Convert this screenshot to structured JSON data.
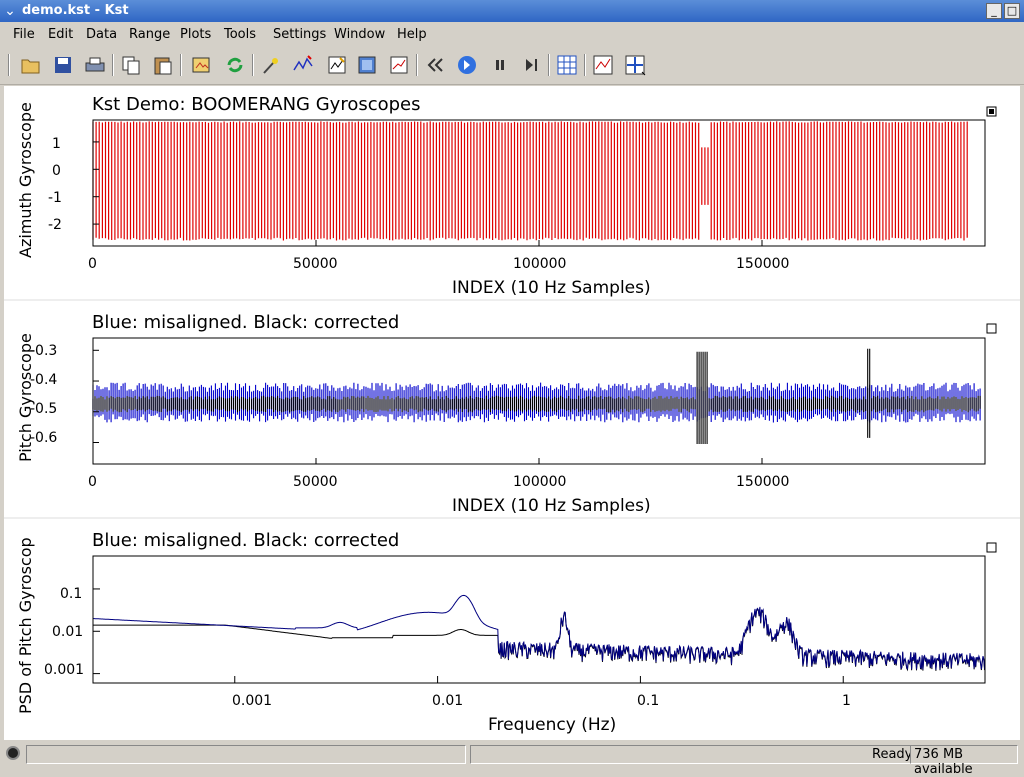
{
  "window": {
    "title": "demo.kst - Kst"
  },
  "menu": [
    "File",
    "Edit",
    "Data",
    "Range",
    "Plots",
    "Tools",
    "Settings",
    "Window",
    "Help"
  ],
  "toolbar_icons": [
    "open-icon",
    "save-icon",
    "print-icon",
    "copy-icon",
    "paste-icon",
    "export-icon",
    "reload-icon",
    "magic-wand-icon",
    "data-wizard-icon",
    "edit-curve-icon",
    "edit-image-icon",
    "edit-plot-icon",
    "back-icon",
    "play-icon",
    "pause-icon",
    "forward-icon",
    "layout-mode-icon",
    "zoom-xy-icon",
    "zoom-menu-icon"
  ],
  "plots": {
    "p1": {
      "title": "Kst Demo: BOOMERANG Gyroscopes",
      "ylabel": "Azimuth Gyroscope",
      "xlabel": "INDEX (10 Hz Samples)",
      "yticks": [
        "1",
        "0",
        "-1",
        "-2"
      ],
      "xticks": [
        "0",
        "50000",
        "100000",
        "150000"
      ]
    },
    "p2": {
      "title": "Blue: misaligned. Black: corrected",
      "ylabel": "Pitch Gyroscope",
      "xlabel": "INDEX (10 Hz Samples)",
      "yticks": [
        "-0.3",
        "-0.4",
        "-0.5",
        "-0.6"
      ],
      "xticks": [
        "0",
        "50000",
        "100000",
        "150000"
      ]
    },
    "p3": {
      "title": "Blue: misaligned.  Black: corrected",
      "ylabel": "PSD of Pitch Gyroscop",
      "xlabel": "Frequency (Hz)",
      "yticks": [
        "0.1",
        "0.01",
        "0.001"
      ],
      "xticks": [
        "0.001",
        "0.01",
        "0.1",
        "1"
      ]
    }
  },
  "chart_data": [
    {
      "type": "line",
      "title": "Kst Demo: BOOMERANG Gyroscopes",
      "xlabel": "INDEX (10 Hz Samples)",
      "ylabel": "Azimuth Gyroscope",
      "xlim": [
        0,
        200000
      ],
      "ylim": [
        -2.8,
        1.8
      ],
      "series": [
        {
          "color": "#e00000"
        }
      ]
    },
    {
      "type": "line",
      "title": "Blue: misaligned. Black: corrected",
      "xlabel": "INDEX (10 Hz Samples)",
      "ylabel": "Pitch Gyroscope",
      "xlim": [
        0,
        200000
      ],
      "ylim": [
        -0.67,
        -0.26
      ],
      "series": [
        {
          "color": "#0000cc"
        },
        {
          "color": "#000000"
        }
      ]
    },
    {
      "type": "line",
      "title": "Blue: misaligned.  Black: corrected",
      "xlabel": "Frequency (Hz)",
      "ylabel": "PSD of Pitch Gyroscop",
      "xscale": "log",
      "yscale": "log",
      "xlim": [
        0.0002,
        5
      ],
      "ylim": [
        0.0006,
        0.6
      ],
      "series": [
        {
          "color": "#000080"
        },
        {
          "color": "#000000"
        }
      ]
    }
  ],
  "status": {
    "text": "Ready",
    "memory": "736 MB available"
  },
  "colors": {
    "titlebar": "#2f66c4",
    "red": "#e00000",
    "blue": "#0000cc",
    "navy": "#000080"
  }
}
